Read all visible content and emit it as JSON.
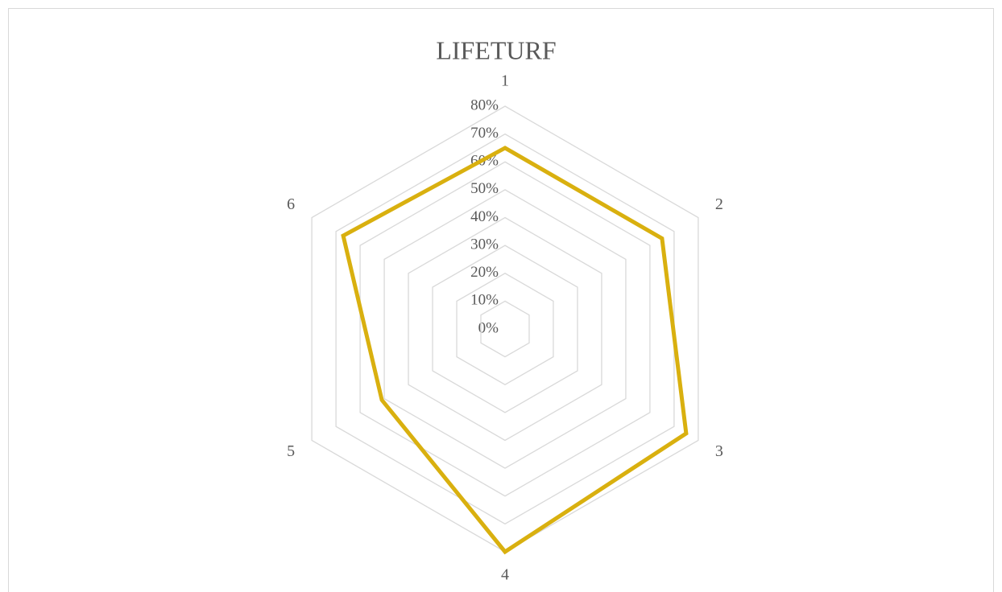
{
  "chart_data": {
    "type": "radar",
    "title": "LIFETURF",
    "categories": [
      "1",
      "2",
      "3",
      "4",
      "5",
      "6"
    ],
    "series": [
      {
        "name": "LIFETURF",
        "color": "#d9b00f",
        "values": [
          65,
          65,
          75,
          80,
          51,
          67
        ]
      }
    ],
    "ylim": [
      0,
      80
    ],
    "yticks": [
      {
        "value": 0,
        "label": "0%"
      },
      {
        "value": 10,
        "label": "10%"
      },
      {
        "value": 20,
        "label": "20%"
      },
      {
        "value": 30,
        "label": "30%"
      },
      {
        "value": 40,
        "label": "40%"
      },
      {
        "value": 50,
        "label": "50%"
      },
      {
        "value": 60,
        "label": "60%"
      },
      {
        "value": 70,
        "label": "70%"
      },
      {
        "value": 80,
        "label": "80%"
      }
    ],
    "grid": true
  }
}
